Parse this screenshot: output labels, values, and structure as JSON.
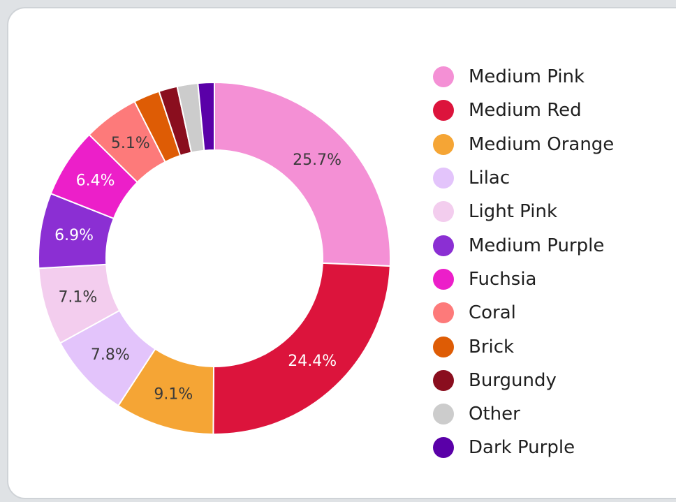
{
  "chart_data": {
    "type": "pie",
    "style": "donut",
    "legend_position": "right",
    "slices": [
      {
        "label": "Medium Pink",
        "value": 25.7,
        "display": "25.7%",
        "color": "#f490d5",
        "text_color": "#3a3a3a"
      },
      {
        "label": "Medium Red",
        "value": 24.4,
        "display": "24.4%",
        "color": "#dc143c",
        "text_color": "#ffffff"
      },
      {
        "label": "Medium Orange",
        "value": 9.1,
        "display": "9.1%",
        "color": "#f5a535",
        "text_color": "#3a3a3a"
      },
      {
        "label": "Lilac",
        "value": 7.8,
        "display": "7.8%",
        "color": "#e3c4fb",
        "text_color": "#3a3a3a"
      },
      {
        "label": "Light Pink",
        "value": 7.1,
        "display": "7.1%",
        "color": "#f3cdee",
        "text_color": "#3a3a3a"
      },
      {
        "label": "Medium Purple",
        "value": 6.9,
        "display": "6.9%",
        "color": "#8b2fd3",
        "text_color": "#ffffff"
      },
      {
        "label": "Fuchsia",
        "value": 6.4,
        "display": "6.4%",
        "color": "#ec1fc9",
        "text_color": "#ffffff"
      },
      {
        "label": "Coral",
        "value": 5.1,
        "display": "5.1%",
        "color": "#fd7a7a",
        "text_color": "#3a3a3a"
      },
      {
        "label": "Brick",
        "value": 2.4,
        "display": "",
        "color": "#de5c05",
        "text_color": "#ffffff"
      },
      {
        "label": "Burgundy",
        "value": 1.7,
        "display": "",
        "color": "#8a0e1e",
        "text_color": "#ffffff"
      },
      {
        "label": "Other",
        "value": 1.9,
        "display": "",
        "color": "#cccccc",
        "text_color": "#3a3a3a"
      },
      {
        "label": "Dark Purple",
        "value": 1.5,
        "display": "",
        "color": "#5a00a8",
        "text_color": "#ffffff"
      }
    ]
  }
}
